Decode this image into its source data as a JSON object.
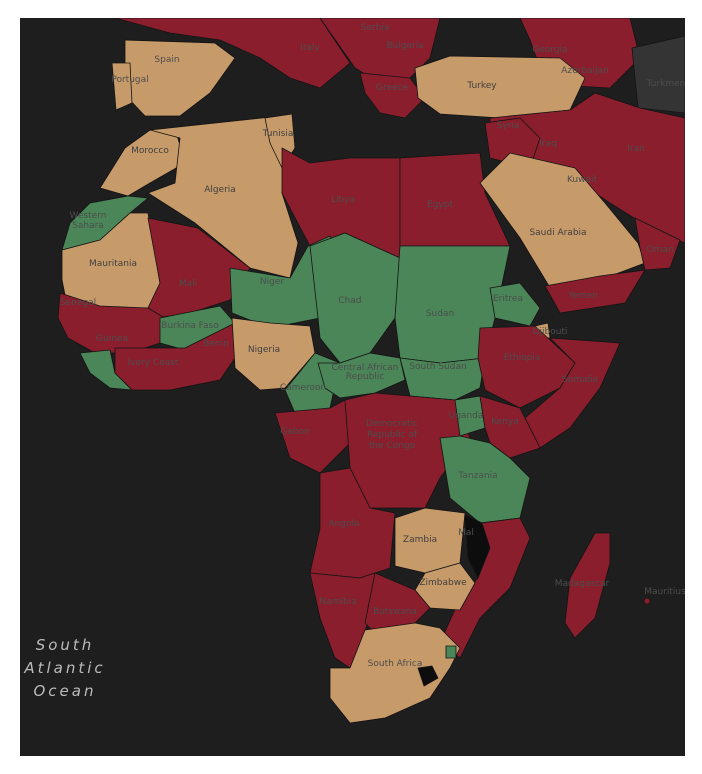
{
  "colors": {
    "background": "#1e1e1e",
    "red": "#8b1e2d",
    "tan": "#c79a6a",
    "green": "#4a8657",
    "black": "#0d0d0d",
    "gray": "#343434"
  },
  "ocean_label": [
    "South",
    "Atlantic",
    "Ocean"
  ],
  "countries": {
    "spain": "Spain",
    "portugal": "Portugal",
    "italy": "Italy",
    "serbia": "Serbia",
    "bulgaria": "Bulgaria",
    "greece": "Greece",
    "turkey": "Turkey",
    "georgia": "Georgia",
    "azerbaijan": "Azerbaijan",
    "turkmenistan": "Turkmen",
    "morocco": "Morocco",
    "algeria": "Algeria",
    "tunisia": "Tunisia",
    "libya": "Libya",
    "egypt": "Egypt",
    "syria": "Syria",
    "iraq": "Iraq",
    "iran": "Iran",
    "kuwait": "Kuwait",
    "saudi_arabia": "Saudi Arabia",
    "oman": "Oman",
    "yemen": "Yemen",
    "western_sahara_1": "Western",
    "western_sahara_2": "Sahara",
    "mauritania": "Mauritania",
    "mali": "Mali",
    "niger": "Niger",
    "chad": "Chad",
    "sudan": "Sudan",
    "eritrea": "Eritrea",
    "djibouti": "Djibouti",
    "senegal": "Senegal",
    "guinea": "Guinea",
    "burkina_faso": "Burkina Faso",
    "benin": "Benin",
    "ivory_coast": "Ivory Coast",
    "nigeria": "Nigeria",
    "cameroon": "Cameroon",
    "car_1": "Central African",
    "car_2": "Republic",
    "south_sudan": "South Sudan",
    "ethiopia": "Ethiopia",
    "somalia": "Somalia",
    "gabon": "Gabon",
    "drc_1": "Democratic",
    "drc_2": "Republic of",
    "drc_3": "the Congo",
    "uganda": "Uganda",
    "kenya": "Kenya",
    "tanzania": "Tanzania",
    "angola": "Angola",
    "zambia": "Zambia",
    "malawi": "Mal",
    "zimbabwe": "Zimbabwe",
    "namibia": "Namibia",
    "botswana": "Botswana",
    "madagascar": "Madagascar",
    "mauritius": "Mauritius",
    "south_africa": "South Africa"
  },
  "fill": {
    "spain": "tan",
    "portugal": "tan",
    "italy": "red",
    "balkans": "red",
    "greece": "red",
    "turkey": "tan",
    "caucasus": "red",
    "iran_region": "red",
    "turkmenistan": "gray",
    "morocco": "tan",
    "algeria": "tan",
    "tunisia": "tan",
    "libya": "red",
    "egypt": "red",
    "levant": "red",
    "saudi_arabia": "tan",
    "oman": "red",
    "yemen": "red",
    "western_sahara": "green",
    "mauritania": "tan",
    "mali": "red",
    "niger": "green",
    "chad": "green",
    "sudan": "green",
    "eritrea": "green",
    "djibouti": "tan",
    "west_coast": "red",
    "guinea_coast": "green",
    "burkina_faso": "green",
    "ghana_benin": "red",
    "nigeria": "tan",
    "cameroon": "green",
    "car": "green",
    "south_sudan": "green",
    "ethiopia": "red",
    "somalia": "red",
    "gabon_congo": "red",
    "drc": "red",
    "uganda": "green",
    "kenya": "red",
    "tanzania": "green",
    "angola": "red",
    "zambia": "tan",
    "malawi": "black",
    "mozambique": "red",
    "zimbabwe": "tan",
    "namibia": "red",
    "botswana": "red",
    "south_africa": "tan",
    "lesotho": "black",
    "eswatini": "green",
    "madagascar": "red",
    "mauritius": "red"
  }
}
